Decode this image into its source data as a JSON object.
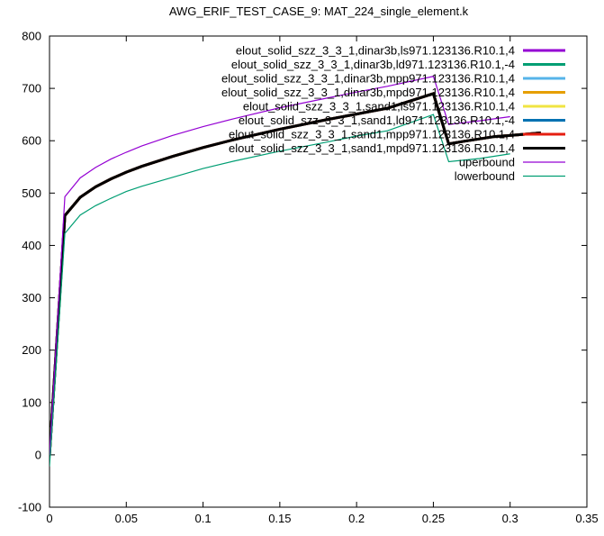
{
  "chart_data": {
    "type": "line",
    "title": "AWG_ERIF_TEST_CASE_9: MAT_224_single_element.k",
    "xlabel": "",
    "ylabel": "",
    "xlim": [
      0,
      0.35
    ],
    "ylim": [
      -100,
      800
    ],
    "xticks": [
      0,
      0.05,
      0.1,
      0.15,
      0.2,
      0.25,
      0.3,
      0.35
    ],
    "xtick_labels": [
      "0",
      "0.05",
      "0.1",
      "0.15",
      "0.2",
      "0.25",
      "0.3",
      "0.35"
    ],
    "yticks": [
      -100,
      0,
      100,
      200,
      300,
      400,
      500,
      600,
      700,
      800
    ],
    "ytick_labels": [
      "-100",
      "0",
      "100",
      "200",
      "300",
      "400",
      "500",
      "600",
      "700",
      "800"
    ],
    "grid": false,
    "legend_position": "top-right",
    "series": [
      {
        "name": "elout_solid_szz_3_3_1,dinar3b,ls971.123136.R10.1,4",
        "color": "#9400d3",
        "x": [
          0,
          0.01,
          0.02,
          0.03,
          0.04,
          0.05,
          0.06,
          0.08,
          0.1,
          0.12,
          0.15,
          0.18,
          0.2,
          0.22,
          0.25,
          0.26,
          0.27,
          0.29,
          0.3,
          0.32
        ],
        "y": [
          0,
          457,
          492,
          512,
          527,
          540,
          551,
          570,
          587,
          602,
          622,
          640,
          651,
          662,
          690,
          594,
          599,
          608,
          610,
          615
        ]
      },
      {
        "name": "elout_solid_szz_3_3_1,dinar3b,ld971.123136.R10.1,-4",
        "color": "#009e73",
        "x": [
          0,
          0.01,
          0.02,
          0.03,
          0.04,
          0.05,
          0.06,
          0.08,
          0.1,
          0.12,
          0.15,
          0.18,
          0.2,
          0.22,
          0.25,
          0.26,
          0.27,
          0.29,
          0.3,
          0.32
        ],
        "y": [
          0,
          457,
          492,
          512,
          527,
          540,
          551,
          570,
          587,
          602,
          622,
          640,
          651,
          662,
          690,
          594,
          599,
          608,
          610,
          615
        ]
      },
      {
        "name": "elout_solid_szz_3_3_1,dinar3b,mpp971.123136.R10.1,4",
        "color": "#56b4e9",
        "x": [
          0,
          0.01,
          0.02,
          0.03,
          0.04,
          0.05,
          0.06,
          0.08,
          0.1,
          0.12,
          0.15,
          0.18,
          0.2,
          0.22,
          0.25,
          0.26,
          0.27,
          0.29,
          0.3,
          0.32
        ],
        "y": [
          0,
          457,
          492,
          512,
          527,
          540,
          551,
          570,
          587,
          602,
          622,
          640,
          651,
          662,
          690,
          594,
          599,
          608,
          610,
          615
        ]
      },
      {
        "name": "elout_solid_szz_3_3_1,dinar3b,mpd971.123136.R10.1,4",
        "color": "#e69f00",
        "x": [
          0,
          0.01,
          0.02,
          0.03,
          0.04,
          0.05,
          0.06,
          0.08,
          0.1,
          0.12,
          0.15,
          0.18,
          0.2,
          0.22,
          0.25,
          0.26,
          0.27,
          0.29,
          0.3,
          0.32
        ],
        "y": [
          0,
          457,
          492,
          512,
          527,
          540,
          551,
          570,
          587,
          602,
          622,
          640,
          651,
          662,
          690,
          594,
          599,
          608,
          610,
          615
        ]
      },
      {
        "name": "elout_solid_szz_3_3_1,sand1,ls971.123136.R10.1,4",
        "color": "#f0e442",
        "x": [
          0,
          0.01,
          0.02,
          0.03,
          0.04,
          0.05,
          0.06,
          0.08,
          0.1,
          0.12,
          0.15,
          0.18,
          0.2,
          0.22,
          0.25,
          0.26,
          0.27,
          0.29,
          0.3,
          0.32
        ],
        "y": [
          0,
          457,
          492,
          512,
          527,
          540,
          551,
          570,
          587,
          602,
          622,
          640,
          651,
          662,
          690,
          594,
          599,
          608,
          610,
          615
        ]
      },
      {
        "name": "elout_solid_szz_3_3_1,sand1,ld971.123136.R10.1,-4",
        "color": "#0072b2",
        "x": [
          0,
          0.01,
          0.02,
          0.03,
          0.04,
          0.05,
          0.06,
          0.08,
          0.1,
          0.12,
          0.15,
          0.18,
          0.2,
          0.22,
          0.25,
          0.26,
          0.27,
          0.29,
          0.3,
          0.32
        ],
        "y": [
          0,
          457,
          492,
          512,
          527,
          540,
          551,
          570,
          587,
          602,
          622,
          640,
          651,
          662,
          690,
          594,
          599,
          608,
          610,
          615
        ]
      },
      {
        "name": "elout_solid_szz_3_3_1,sand1,mpp971.123136.R10.1,4",
        "color": "#e51e10",
        "x": [
          0,
          0.01,
          0.02,
          0.03,
          0.04,
          0.05,
          0.06,
          0.08,
          0.1,
          0.12,
          0.15,
          0.18,
          0.2,
          0.22,
          0.25,
          0.26,
          0.27,
          0.29,
          0.3,
          0.32
        ],
        "y": [
          0,
          457,
          492,
          512,
          527,
          540,
          551,
          570,
          587,
          602,
          622,
          640,
          651,
          662,
          690,
          594,
          599,
          608,
          610,
          615
        ]
      },
      {
        "name": "elout_solid_szz_3_3_1,sand1,mpd971.123136.R10.1,4",
        "color": "#000000",
        "x": [
          0,
          0.01,
          0.02,
          0.03,
          0.04,
          0.05,
          0.06,
          0.08,
          0.1,
          0.12,
          0.15,
          0.18,
          0.2,
          0.22,
          0.25,
          0.26,
          0.27,
          0.29,
          0.3,
          0.32
        ],
        "y": [
          0,
          457,
          492,
          512,
          527,
          540,
          551,
          570,
          587,
          602,
          622,
          640,
          651,
          662,
          690,
          594,
          599,
          608,
          610,
          615
        ]
      },
      {
        "name": "uperbound",
        "color": "#9400d3",
        "x": [
          0,
          0.01,
          0.02,
          0.03,
          0.04,
          0.05,
          0.06,
          0.08,
          0.1,
          0.12,
          0.15,
          0.18,
          0.2,
          0.22,
          0.25,
          0.26,
          0.28,
          0.3
        ],
        "y": [
          0,
          493,
          529,
          549,
          565,
          578,
          590,
          610,
          627,
          642,
          663,
          681,
          693,
          704,
          723,
          631,
          638,
          646
        ]
      },
      {
        "name": "lowerbound",
        "color": "#009e73",
        "x": [
          0,
          0.01,
          0.02,
          0.03,
          0.04,
          0.05,
          0.06,
          0.08,
          0.1,
          0.12,
          0.15,
          0.18,
          0.2,
          0.22,
          0.25,
          0.26,
          0.28,
          0.3
        ],
        "y": [
          -22,
          423,
          458,
          476,
          490,
          503,
          513,
          530,
          547,
          561,
          580,
          597,
          609,
          619,
          650,
          560,
          566,
          575
        ]
      }
    ]
  }
}
